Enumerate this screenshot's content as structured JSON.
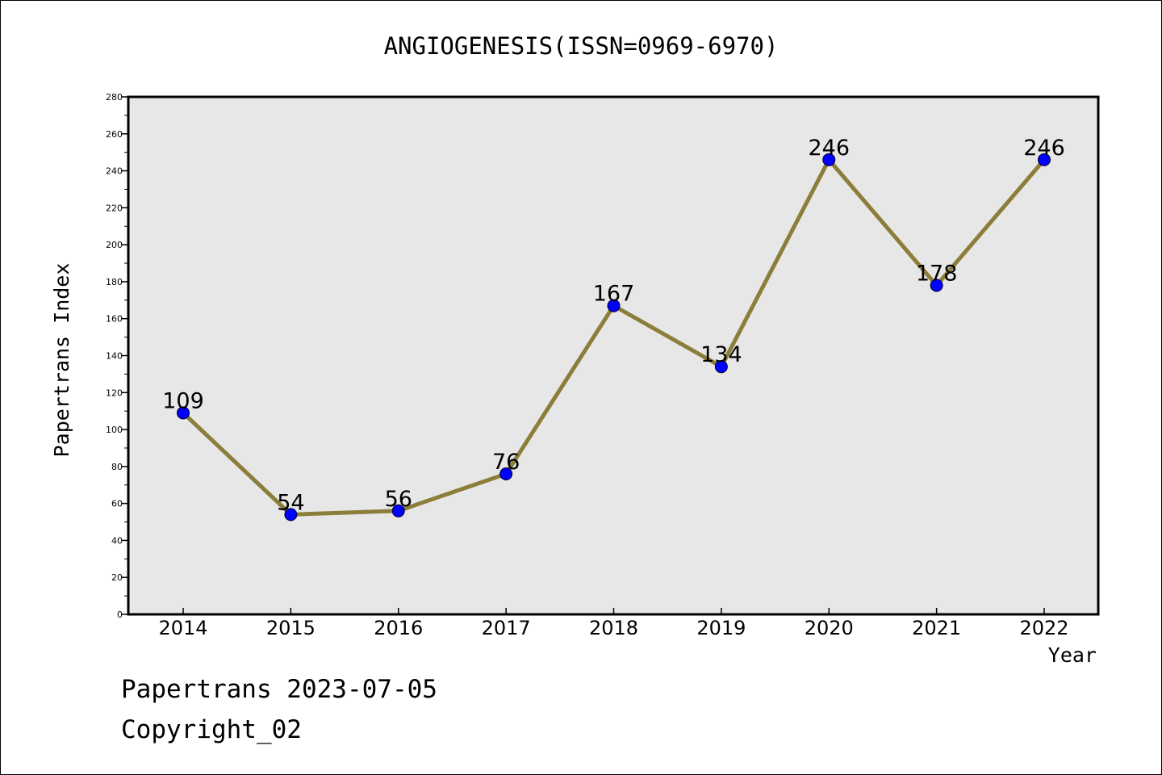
{
  "chart_data": {
    "type": "line",
    "title": "ANGIOGENESIS(ISSN=0969-6970)",
    "xlabel": "Year",
    "ylabel": "Papertrans Index",
    "categories": [
      "2014",
      "2015",
      "2016",
      "2017",
      "2018",
      "2019",
      "2020",
      "2021",
      "2022"
    ],
    "values": [
      109,
      54,
      56,
      76,
      167,
      134,
      246,
      178,
      246
    ],
    "data_labels": [
      "109",
      "54",
      "56",
      "76",
      "167",
      "134",
      "246",
      "178",
      "246"
    ],
    "ylim": [
      0,
      280
    ],
    "yticks": [
      0,
      20,
      40,
      60,
      80,
      100,
      120,
      140,
      160,
      180,
      200,
      220,
      240,
      260,
      280
    ],
    "ytick_labels": [
      "0",
      "20",
      "40",
      "60",
      "80",
      "100",
      "120",
      "140",
      "160",
      "180",
      "200",
      "220",
      "240",
      "260",
      "280"
    ],
    "grid": false,
    "line_color": "#8b7d3a",
    "marker_color": "#0000ff",
    "plot_background": "#e7e7e7"
  },
  "footer": {
    "stamp": "Papertrans 2023-07-05",
    "copyright": "Copyright_02"
  }
}
